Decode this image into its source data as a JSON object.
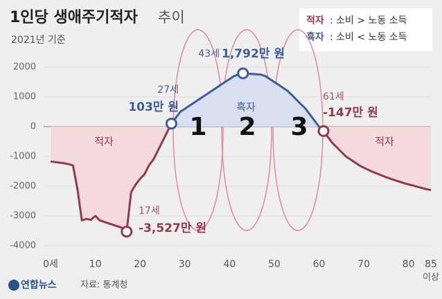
{
  "chart_data": {
    "type": "line",
    "title": "1인당 생애주기적자",
    "title_suffix": "추이",
    "subtitle": "2021년 기준",
    "legend": [
      {
        "label": "적자",
        "text": ": 소비 > 노동 소득"
      },
      {
        "label": "흑자",
        "text": ": 소비 < 노동 소득"
      }
    ],
    "region_labels": [
      "적자",
      "흑자",
      "적자"
    ],
    "phase_labels": [
      "1",
      "2",
      "3"
    ],
    "x": [
      0,
      1,
      2,
      3,
      4,
      5,
      6,
      7,
      8,
      9,
      10,
      11,
      12,
      13,
      14,
      15,
      16,
      17,
      18,
      19,
      20,
      21,
      22,
      23,
      24,
      25,
      26,
      27,
      28,
      29,
      30,
      31,
      32,
      33,
      34,
      35,
      36,
      37,
      38,
      39,
      40,
      41,
      42,
      43,
      44,
      45,
      46,
      47,
      48,
      49,
      50,
      51,
      52,
      53,
      54,
      55,
      56,
      57,
      58,
      59,
      60,
      61,
      62,
      63,
      64,
      65,
      66,
      67,
      68,
      69,
      70,
      71,
      72,
      73,
      74,
      75,
      76,
      77,
      78,
      79,
      80,
      81,
      82,
      83,
      84,
      85
    ],
    "series": [
      {
        "color": "#8e3b4d",
        "surplus_color": "#3f5c96",
        "values": [
          -1170,
          -1190,
          -1210,
          -1230,
          -1260,
          -1300,
          -2100,
          -3150,
          -3100,
          -3130,
          -3000,
          -3150,
          -3200,
          -3250,
          -3300,
          -3350,
          -3400,
          -3527,
          -2200,
          -1950,
          -1750,
          -1600,
          -1300,
          -1100,
          -800,
          -500,
          -200,
          103,
          300,
          500,
          600,
          700,
          800,
          900,
          1000,
          1100,
          1200,
          1300,
          1400,
          1500,
          1600,
          1700,
          1750,
          1792,
          1780,
          1770,
          1760,
          1750,
          1700,
          1600,
          1500,
          1400,
          1300,
          1200,
          1050,
          900,
          750,
          600,
          400,
          200,
          0,
          -147,
          -350,
          -550,
          -700,
          -850,
          -1000,
          -1100,
          -1200,
          -1300,
          -1380,
          -1450,
          -1520,
          -1580,
          -1640,
          -1700,
          -1750,
          -1800,
          -1850,
          -1900,
          -1940,
          -1980,
          -2020,
          -2060,
          -2100,
          -2130
        ]
      }
    ],
    "annotations": [
      {
        "x": 17,
        "label": "17세",
        "value_label": "-3,527만 원"
      },
      {
        "x": 27,
        "label": "27세",
        "value_label": "103만 원"
      },
      {
        "x": 43,
        "label": "43세",
        "value_label": "1,792만 원"
      },
      {
        "x": 61,
        "label": "61세",
        "value_label": "-147만 원"
      }
    ],
    "xlim": [
      0,
      85
    ],
    "xticks": [
      {
        "value": 0,
        "label": "0세"
      },
      10,
      20,
      30,
      40,
      50,
      60,
      70,
      80,
      85
    ],
    "xlabel": "이상",
    "ylim": [
      -4000,
      2000
    ],
    "yticks": [
      -4000,
      -3000,
      -2000,
      -1000,
      0,
      1000,
      2000
    ],
    "grid": true,
    "source": "자료: 통계청",
    "brand": "연합뉴스"
  }
}
